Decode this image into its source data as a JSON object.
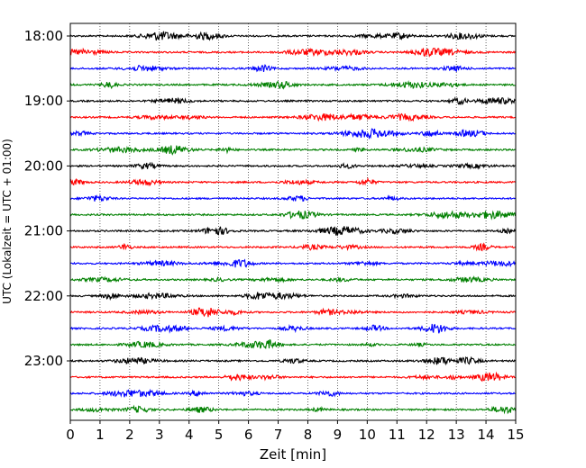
{
  "chart_data": {
    "type": "line",
    "title": "",
    "xlabel": "Zeit  [min]",
    "ylabel": "UTC (Lokalzeit = UTC + 01:00)",
    "xlim": [
      0,
      15
    ],
    "x_ticks": [
      "0",
      "1",
      "2",
      "3",
      "4",
      "5",
      "6",
      "7",
      "8",
      "9",
      "10",
      "11",
      "12",
      "13",
      "14",
      "15"
    ],
    "y_tick_labels": [
      "18:00",
      "19:00",
      "20:00",
      "21:00",
      "22:00",
      "23:00"
    ],
    "y_tick_rows": [
      0,
      4,
      8,
      12,
      16,
      20
    ],
    "rows": 24,
    "row_colors": [
      "#000000",
      "#ff0000",
      "#0000ff",
      "#008000"
    ],
    "grid": "vertical-dotted"
  }
}
